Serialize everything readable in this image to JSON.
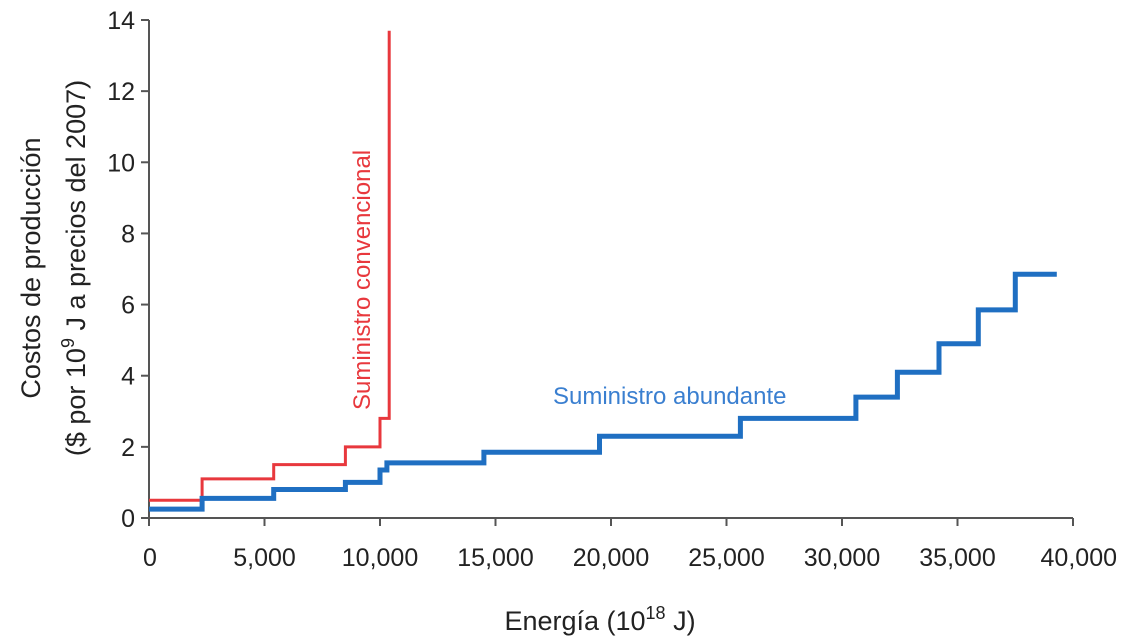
{
  "chart_data": {
    "type": "line",
    "step": true,
    "title": "",
    "xlabel_parts": [
      "Energía (10",
      "18",
      " J)"
    ],
    "ylabel_line1": "Costos de producción",
    "ylabel_line2_parts": [
      "($ por 10",
      "9",
      " J a precios del 2007)"
    ],
    "xlim": [
      0,
      40000
    ],
    "ylim": [
      0,
      14
    ],
    "x_ticks": [
      0,
      5000,
      10000,
      15000,
      20000,
      25000,
      30000,
      35000,
      40000
    ],
    "x_tick_labels": [
      "0",
      "5,000",
      "10,000",
      "15,000",
      "20,000",
      "25,000",
      "30,000",
      "35,000",
      "40,000"
    ],
    "y_ticks": [
      0,
      2,
      4,
      6,
      8,
      10,
      12,
      14
    ],
    "y_tick_labels": [
      "0",
      "2",
      "4",
      "6",
      "8",
      "10",
      "12",
      "14"
    ],
    "grid": false,
    "series": [
      {
        "name": "Suministro convencional",
        "color": "#e8383d",
        "points": [
          [
            0,
            0.5
          ],
          [
            2300,
            0.5
          ],
          [
            2300,
            1.1
          ],
          [
            5400,
            1.1
          ],
          [
            5400,
            1.5
          ],
          [
            8500,
            1.5
          ],
          [
            8500,
            2.0
          ],
          [
            10000,
            2.0
          ],
          [
            10000,
            2.8
          ],
          [
            10400,
            2.8
          ],
          [
            10400,
            13.7
          ]
        ]
      },
      {
        "name": "Suministro abundante",
        "color": "#1f6fc2",
        "points": [
          [
            0,
            0.25
          ],
          [
            2300,
            0.25
          ],
          [
            2300,
            0.55
          ],
          [
            5400,
            0.55
          ],
          [
            5400,
            0.8
          ],
          [
            8500,
            0.8
          ],
          [
            8500,
            1.0
          ],
          [
            10000,
            1.0
          ],
          [
            10000,
            1.35
          ],
          [
            10300,
            1.35
          ],
          [
            10300,
            1.55
          ],
          [
            14500,
            1.55
          ],
          [
            14500,
            1.85
          ],
          [
            19500,
            1.85
          ],
          [
            19500,
            2.3
          ],
          [
            25600,
            2.3
          ],
          [
            25600,
            2.8
          ],
          [
            30600,
            2.8
          ],
          [
            30600,
            3.4
          ],
          [
            32400,
            3.4
          ],
          [
            32400,
            4.1
          ],
          [
            34200,
            4.1
          ],
          [
            34200,
            4.9
          ],
          [
            35900,
            4.9
          ],
          [
            35900,
            5.85
          ],
          [
            37500,
            5.85
          ],
          [
            37500,
            6.85
          ],
          [
            39300,
            6.85
          ]
        ]
      }
    ]
  }
}
